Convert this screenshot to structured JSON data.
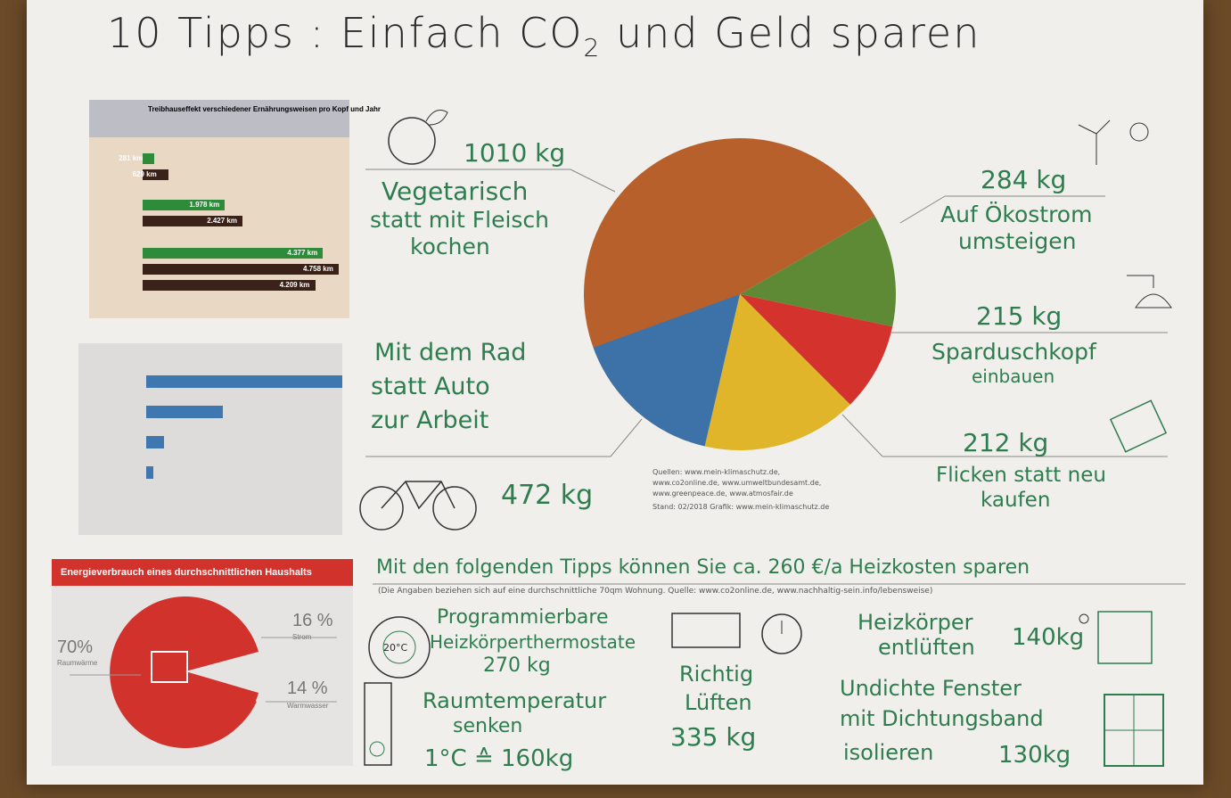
{
  "title": {
    "main": "10 Tipps : Einfach CO",
    "sub": "2",
    "rest": " und Geld sparen"
  },
  "tips": {
    "veg": {
      "value": "1010 kg",
      "line1": "Vegetarisch",
      "line2": "statt mit Fleisch",
      "line3": "kochen"
    },
    "oekostrom": {
      "value": "284 kg",
      "line1": "Auf Ökostrom",
      "line2": "umsteigen"
    },
    "dusch": {
      "value": "215 kg",
      "line1": "Sparduschkopf",
      "line2": "einbauen"
    },
    "flicken": {
      "value": "212 kg",
      "line1": "Flicken statt neu",
      "line2": "kaufen"
    },
    "rad": {
      "value": "472 kg",
      "line1": "Mit dem Rad",
      "line2": "statt Auto",
      "line3": "zur Arbeit"
    }
  },
  "pie": {
    "colors": [
      "#b8602c",
      "#5f8a35",
      "#d4322c",
      "#e0b52a",
      "#3d72a8"
    ]
  },
  "sources": {
    "l1": "Quellen: www.mein-klimaschutz.de,",
    "l2": "www.co2online.de, www.umweltbundesamt.de,",
    "l3": "www.greenpeace.de, www.atmosfair.de",
    "l4": "Stand: 02/2018   Grafik: www.mein-klimaschutz.de"
  },
  "heating": {
    "headline": "Mit den folgenden Tipps können Sie ca. 260 €/a Heizkosten sparen",
    "note": "(Die Angaben beziehen sich auf eine durchschnittliche 70qm Wohnung. Quelle: www.co2online.de, www.nachhaltig-sein.info/lebensweise)",
    "thermo": {
      "line1": "Programmierbare",
      "line2": "Heizkörperthermostate",
      "value": "270 kg",
      "dial": "20°C"
    },
    "lueften": {
      "line1": "Richtig",
      "line2": "Lüften",
      "value": "335 kg"
    },
    "entlueften": {
      "line1": "Heizkörper",
      "line2": "entlüften",
      "value": "140kg"
    },
    "raum": {
      "line1": "Raumtemperatur",
      "line2": "senken",
      "value": "1°C ≙ 160kg"
    },
    "fenster": {
      "line1": "Undichte Fenster",
      "line2": "mit Dichtungsband",
      "line3": "isolieren",
      "value": "130kg"
    }
  },
  "printout1": {
    "title": "Treibhauseffekt verschiedener Ernährungsweisen pro Kopf und Jahr",
    "bars": [
      {
        "label": "281 km",
        "fraction": 0.06,
        "color": "#2e8b3a"
      },
      {
        "label": "629 km",
        "fraction": 0.13,
        "color": "#3b2218"
      },
      {
        "label": "1.978 km",
        "fraction": 0.42,
        "color": "#2e8b3a"
      },
      {
        "label": "2.427 km",
        "fraction": 0.51,
        "color": "#3b2218"
      },
      {
        "label": "4.377 km",
        "fraction": 0.92,
        "color": "#2e8b3a"
      },
      {
        "label": "4.758 km",
        "fraction": 1.0,
        "color": "#3b2218"
      },
      {
        "label": "4.209 km",
        "fraction": 0.88,
        "color": "#3b2218"
      }
    ]
  },
  "printout3": {
    "title": "Energieverbrauch eines durchschnittlichen Haushalts",
    "p70": "70%",
    "l70": "Raumwärme",
    "p16": "16 %",
    "l16": "Strom",
    "p14": "14 %",
    "l14": "Warmwasser"
  }
}
